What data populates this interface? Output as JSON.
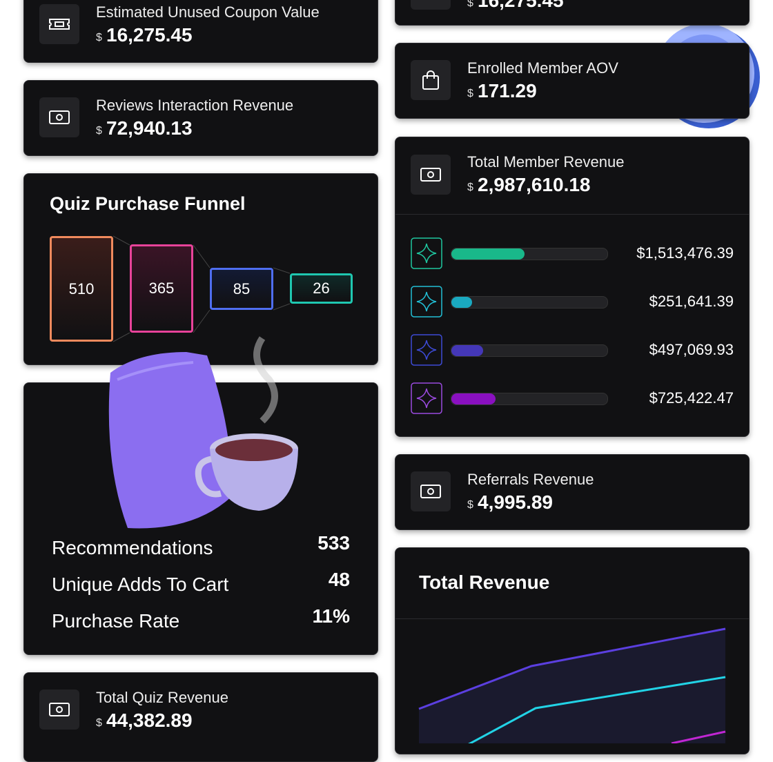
{
  "metrics": [
    {
      "label": "Estimated Unused Coupon Value",
      "currency": "$",
      "value": "16,275.45"
    },
    {
      "label": "Reviews Interaction Revenue",
      "currency": "$",
      "value": "72,940.13"
    },
    {
      "label": "Total Quiz Revenue",
      "currency": "$",
      "value": "44,382.89"
    },
    {
      "currency": "$",
      "value": "16,275.45"
    },
    {
      "label": "Enrolled Member AOV",
      "currency": "$",
      "value": "171.29"
    },
    {
      "label": "Referrals Revenue",
      "currency": "$",
      "value": "4,995.89"
    }
  ],
  "funnel": {
    "title": "Quiz Purchase Funnel",
    "steps": [
      "510",
      "365",
      "85",
      "26"
    ]
  },
  "quiz_stats": [
    {
      "label": "Recommendations",
      "value": "533"
    },
    {
      "label": "Unique Adds To Cart",
      "value": "48"
    },
    {
      "label": "Purchase Rate",
      "value": "11%"
    }
  ],
  "member_revenue": {
    "label": "Total Member Revenue",
    "currency": "$",
    "value": "2,987,610.18",
    "tiers": [
      "$1,513,476.39",
      "$251,641.39",
      "$497,069.93",
      "$725,422.47"
    ]
  },
  "total_revenue": {
    "title": "Total Revenue"
  }
}
